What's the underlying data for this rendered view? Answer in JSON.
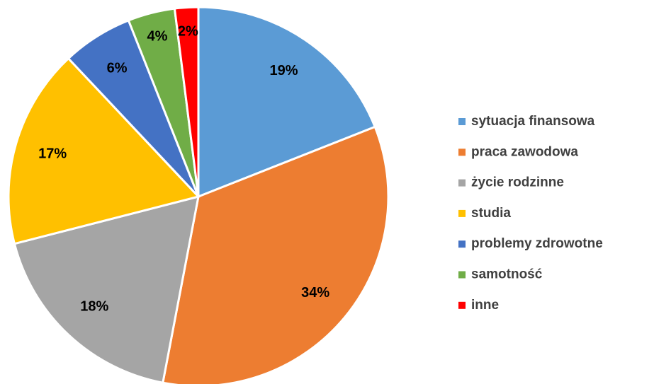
{
  "chart_data": {
    "type": "pie",
    "categories": [
      "sytuacja finansowa",
      "praca zawodowa",
      "życie rodzinne",
      "studia",
      "problemy zdrowotne",
      "samotność",
      "inne"
    ],
    "values": [
      19,
      34,
      18,
      17,
      6,
      4,
      2
    ],
    "value_labels": [
      "19%",
      "34%",
      "18%",
      "17%",
      "6%",
      "4%",
      "2%"
    ],
    "colors": [
      "#5b9bd5",
      "#ed7d31",
      "#a5a5a5",
      "#ffc000",
      "#4472c4",
      "#70ad47",
      "#ff0000"
    ],
    "legend": "right"
  }
}
